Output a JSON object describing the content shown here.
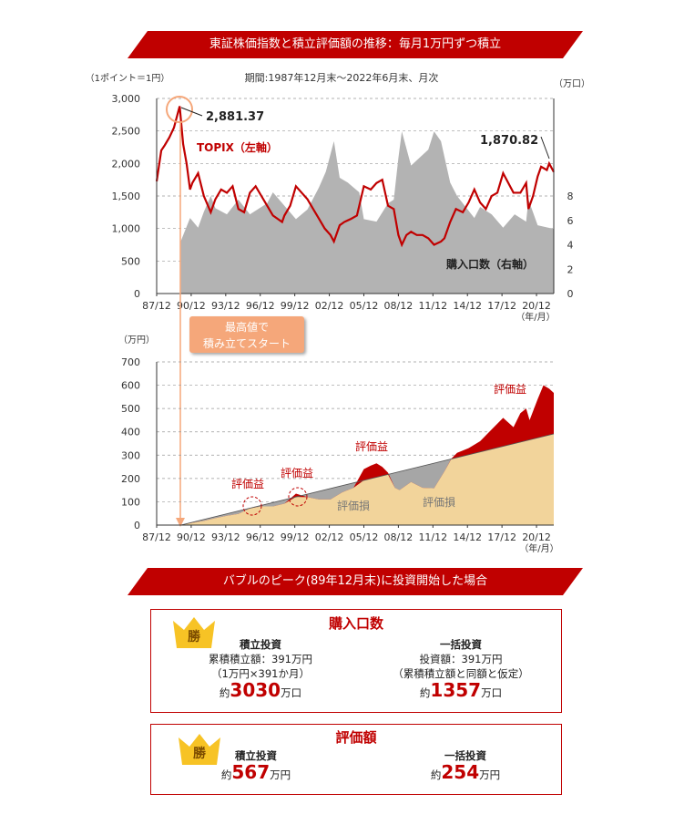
{
  "title": "東証株価指数と積立評価額の推移：毎月1万円ずつ積立",
  "subtitle": "期間:1987年12月末〜2022年6月末、月次",
  "top_chart": {
    "left_unit": "（1ポイント＝1円）",
    "right_unit": "（万口）",
    "y_left_ticks": [
      "3,000",
      "2,500",
      "2,000",
      "1,500",
      "1,000",
      "500",
      "0"
    ],
    "y_right_ticks": [
      "8",
      "6",
      "4",
      "2",
      "0"
    ],
    "x_ticks": [
      "87/12",
      "90/12",
      "93/12",
      "96/12",
      "99/12",
      "02/12",
      "05/12",
      "08/12",
      "11/12",
      "14/12",
      "17/12",
      "20/12"
    ],
    "x_unit": "（年/月）",
    "peak_label": "2,881.37",
    "last_label": "1,870.82",
    "topix_label": "TOPIX（左軸）",
    "units_label": "購入口数（右軸）"
  },
  "callout": {
    "line1": "最高値で",
    "line2": "積み立てスタート"
  },
  "bottom_chart": {
    "unit": "（万円）",
    "y_ticks": [
      "700",
      "600",
      "500",
      "400",
      "300",
      "200",
      "100",
      "0"
    ],
    "x_ticks": [
      "87/12",
      "90/12",
      "93/12",
      "96/12",
      "99/12",
      "02/12",
      "05/12",
      "08/12",
      "11/12",
      "14/12",
      "17/12",
      "20/12"
    ],
    "x_unit": "（年/月）",
    "gain_label": "評価益",
    "loss_label": "評価損"
  },
  "banner2": "バブルのピーク(89年12月末)に投資開始した場合",
  "box1": {
    "title": "購入口数",
    "win": "勝",
    "left_head": "積立投資",
    "left_l1": "累積積立額：391万円",
    "left_l2": "（1万円×391か月）",
    "left_pre": "約",
    "left_value": "3030",
    "left_unit": "万口",
    "right_head": "一括投資",
    "right_l1": "投資額：391万円",
    "right_l2": "（累積積立額と同額と仮定）",
    "right_pre": "約",
    "right_value": "1357",
    "right_unit": "万口"
  },
  "box2": {
    "title": "評価額",
    "win": "勝",
    "left_head": "積立投資",
    "left_pre": "約",
    "left_value": "567",
    "left_unit": "万円",
    "right_head": "一括投資",
    "right_pre": "約",
    "right_value": "254",
    "right_unit": "万円"
  },
  "colors": {
    "red": "#c00000",
    "gray": "#b3b3b3",
    "tan": "#f2d49b",
    "orange": "#f5a77a"
  },
  "chart_data": [
    {
      "type": "line",
      "title": "",
      "xlabel": "（年/月）",
      "ylabel": "（1ポイント＝1円）",
      "ylim": [
        0,
        3000
      ],
      "y2lim": [
        0,
        16
      ],
      "series": [
        {
          "name": "TOPIX（左軸）",
          "axis": "left",
          "x": [
            1987.9,
            1988.3,
            1988.6,
            1989.0,
            1989.4,
            1989.9,
            1990.2,
            1990.5,
            1990.8,
            1991.0,
            1991.5,
            1992.0,
            1992.6,
            1993.0,
            1993.5,
            1994.0,
            1994.5,
            1995.0,
            1995.5,
            1996.0,
            1996.5,
            1997.0,
            1997.5,
            1998.0,
            1998.8,
            1999.0,
            1999.5,
            2000.0,
            2000.5,
            2001.0,
            2001.5,
            2002.0,
            2002.5,
            2003.0,
            2003.3,
            2003.8,
            2004.2,
            2004.8,
            2005.3,
            2005.9,
            2006.5,
            2007.0,
            2007.5,
            2008.0,
            2008.5,
            2008.9,
            2009.2,
            2009.6,
            2010.0,
            2010.5,
            2011.0,
            2011.5,
            2012.0,
            2012.6,
            2012.9,
            2013.4,
            2013.9,
            2014.5,
            2015.0,
            2015.5,
            2016.0,
            2016.5,
            2017.0,
            2017.5,
            2018.0,
            2018.9,
            2019.5,
            2020.0,
            2020.2,
            2020.6,
            2021.0,
            2021.3,
            2021.8,
            2022.0,
            2022.4
          ],
          "y": [
            1725,
            2200,
            2280,
            2400,
            2550,
            2881,
            2300,
            2000,
            1600,
            1700,
            1850,
            1500,
            1250,
            1450,
            1600,
            1550,
            1650,
            1300,
            1250,
            1550,
            1650,
            1500,
            1350,
            1200,
            1100,
            1200,
            1350,
            1650,
            1550,
            1450,
            1300,
            1150,
            1000,
            900,
            800,
            1050,
            1100,
            1150,
            1200,
            1650,
            1600,
            1700,
            1750,
            1350,
            1300,
            900,
            750,
            900,
            950,
            900,
            900,
            850,
            750,
            800,
            850,
            1100,
            1300,
            1250,
            1400,
            1600,
            1400,
            1300,
            1500,
            1550,
            1850,
            1550,
            1550,
            1700,
            1300,
            1500,
            1800,
            1950,
            1900,
            2000,
            1870
          ]
        },
        {
          "name": "購入口数（右軸）",
          "axis": "right",
          "type": "area",
          "x": [
            1990.0,
            1990.8,
            1991.5,
            1992.0,
            1992.6,
            1993.0,
            1994.0,
            1995.0,
            1996.0,
            1997.5,
            1998.0,
            2000.0,
            2001.0,
            2002.0,
            2002.6,
            2003.3,
            2003.8,
            2004.5,
            2005.5,
            2005.9,
            2007.0,
            2008.0,
            2008.5,
            2008.9,
            2009.2,
            2010.0,
            2011.5,
            2012.0,
            2012.6,
            2013.4,
            2014.0,
            2015.5,
            2016.0,
            2017.0,
            2018.0,
            2019.0,
            2020.0,
            2020.2,
            2021.0,
            2022.4
          ],
          "y": [
            4.3,
            6.2,
            5.4,
            6.7,
            8.0,
            7.0,
            6.5,
            7.7,
            6.5,
            7.4,
            8.3,
            6.1,
            6.9,
            8.7,
            10.0,
            12.5,
            9.5,
            9.1,
            8.3,
            6.1,
            5.9,
            7.4,
            7.7,
            11.1,
            13.3,
            10.5,
            11.8,
            13.3,
            12.5,
            9.1,
            8.0,
            6.2,
            7.1,
            6.5,
            5.4,
            6.5,
            5.9,
            7.7,
            5.6,
            5.3
          ]
        }
      ]
    },
    {
      "type": "area",
      "title": "",
      "xlabel": "（年/月）",
      "ylabel": "（万円）",
      "ylim": [
        0,
        700
      ],
      "series": [
        {
          "name": "累積積立額",
          "x": [
            1990.0,
            2022.4
          ],
          "y": [
            0,
            391
          ]
        },
        {
          "name": "評価額",
          "x": [
            1990.0,
            1991.0,
            1992.0,
            1993.0,
            1994.0,
            1995.0,
            1996.0,
            1997.0,
            1998.0,
            1999.0,
            2000.0,
            2001.0,
            2002.0,
            2003.0,
            2004.0,
            2005.0,
            2005.9,
            2006.5,
            2007.0,
            2007.5,
            2008.0,
            2008.6,
            2009.0,
            2010.0,
            2011.0,
            2012.0,
            2012.9,
            2013.5,
            2014.0,
            2015.0,
            2016.0,
            2017.0,
            2018.0,
            2018.9,
            2019.5,
            2020.0,
            2020.3,
            2021.0,
            2021.5,
            2022.0,
            2022.4
          ],
          "y": [
            0,
            10,
            18,
            30,
            40,
            48,
            72,
            80,
            80,
            92,
            135,
            120,
            110,
            110,
            140,
            160,
            240,
            255,
            265,
            250,
            225,
            160,
            150,
            185,
            160,
            158,
            230,
            285,
            310,
            330,
            360,
            410,
            460,
            420,
            480,
            500,
            450,
            540,
            600,
            585,
            567
          ]
        }
      ]
    }
  ]
}
